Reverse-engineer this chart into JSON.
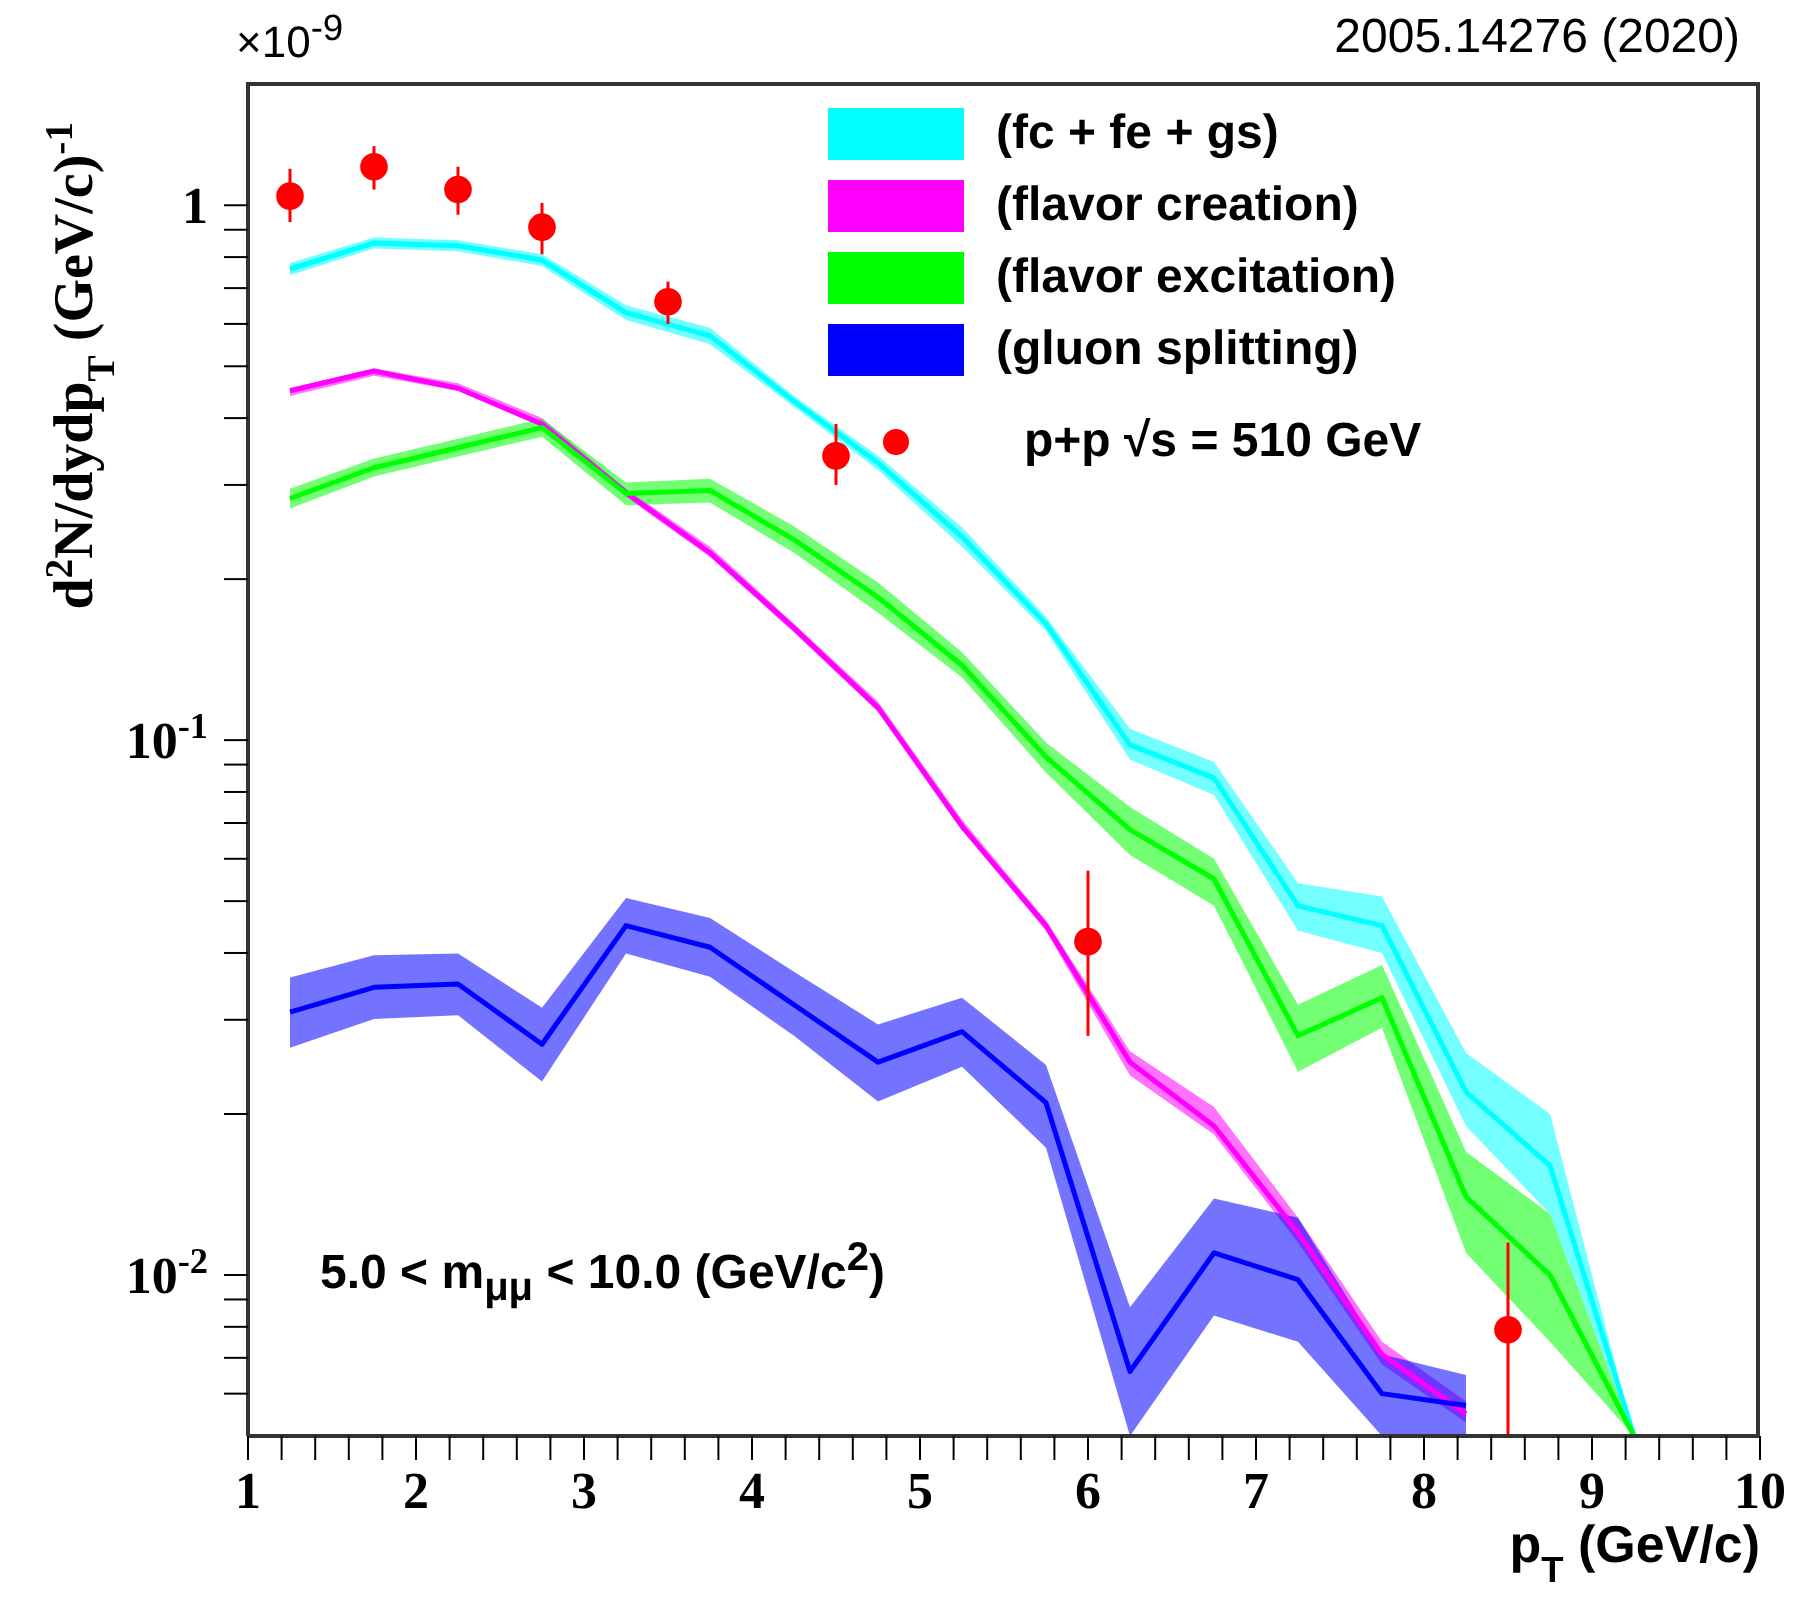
{
  "chart_data": {
    "type": "line",
    "xlabel": "p$_{T}$ (GeV/c)",
    "ylabel": "d$^{2}$N/dydp$_{T}$ (GeV/c)$^{-1}$",
    "x": [
      1.25,
      1.75,
      2.25,
      2.75,
      3.25,
      3.75,
      4.25,
      4.75,
      5.25,
      5.75,
      6.25,
      6.75,
      7.25,
      7.75,
      8.25,
      8.75,
      9.25
    ],
    "xlim": [
      1,
      10
    ],
    "xticks": [
      1,
      {
        "value": 1.2,
        "label": null
      },
      {
        "value": 1.4,
        "label": null
      },
      {
        "value": 1.6,
        "label": null
      },
      {
        "value": 1.8,
        "label": null
      },
      2,
      {
        "value": 2.2,
        "label": null
      },
      {
        "value": 2.4,
        "label": null
      },
      {
        "value": 2.6,
        "label": null
      },
      {
        "value": 2.8,
        "label": null
      },
      3,
      {
        "value": 3.2,
        "label": null
      },
      {
        "value": 3.4,
        "label": null
      },
      {
        "value": 3.6,
        "label": null
      },
      {
        "value": 3.8,
        "label": null
      },
      4,
      {
        "value": 4.2,
        "label": null
      },
      {
        "value": 4.4,
        "label": null
      },
      {
        "value": 4.6,
        "label": null
      },
      {
        "value": 4.8,
        "label": null
      },
      5,
      {
        "value": 5.2,
        "label": null
      },
      {
        "value": 5.4,
        "label": null
      },
      {
        "value": 5.6,
        "label": null
      },
      {
        "value": 5.8,
        "label": null
      },
      6,
      {
        "value": 6.2,
        "label": null
      },
      {
        "value": 6.4,
        "label": null
      },
      {
        "value": 6.6,
        "label": null
      },
      {
        "value": 6.8,
        "label": null
      },
      7,
      {
        "value": 7.2,
        "label": null
      },
      {
        "value": 7.4,
        "label": null
      },
      {
        "value": 7.6,
        "label": null
      },
      {
        "value": 7.8,
        "label": null
      },
      8,
      {
        "value": 8.2,
        "label": null
      },
      {
        "value": 8.4,
        "label": null
      },
      {
        "value": 8.6,
        "label": null
      },
      {
        "value": 8.8,
        "label": null
      },
      9,
      {
        "value": 9.2,
        "label": null
      },
      {
        "value": 9.4,
        "label": null
      },
      {
        "value": 9.6,
        "label": null
      },
      {
        "value": 9.8,
        "label": null
      },
      10
    ],
    "ylim": [
      0.005,
      1.7
    ],
    "yticks": [
      {
        "value": 0.006,
        "label": null
      },
      {
        "value": 0.007,
        "label": null
      },
      {
        "value": 0.008,
        "label": null
      },
      {
        "value": 0.009,
        "label": null
      },
      {
        "value": 0.01,
        "label": "10$^{-2}$"
      },
      {
        "value": 0.02,
        "label": null
      },
      {
        "value": 0.03,
        "label": null
      },
      {
        "value": 0.04,
        "label": null
      },
      {
        "value": 0.05,
        "label": null
      },
      {
        "value": 0.06,
        "label": null
      },
      {
        "value": 0.07,
        "label": null
      },
      {
        "value": 0.08,
        "label": null
      },
      {
        "value": 0.09,
        "label": null
      },
      {
        "value": 0.1,
        "label": "10$^{-1}$"
      },
      {
        "value": 0.2,
        "label": null
      },
      {
        "value": 0.3,
        "label": null
      },
      {
        "value": 0.4,
        "label": null
      },
      {
        "value": 0.5,
        "label": null
      },
      {
        "value": 0.6,
        "label": null
      },
      {
        "value": 0.7,
        "label": null
      },
      {
        "value": 0.8,
        "label": null
      },
      {
        "value": 0.9,
        "label": null
      },
      1
    ],
    "log": "y",
    "legend": "top right",
    "annotations": [
      "×10$^{-9}$",
      "2005.14276 (2020)",
      "5.0 < m$_{μμ}$ < 10.0 (GeV/c$^{2}$)"
    ],
    "series": [
      {
        "name": "(fc + fe + gs)",
        "color": "#00ffff",
        "values": [
          0.76,
          0.85,
          0.84,
          0.79,
          0.63,
          0.57,
          0.43,
          0.33,
          0.24,
          0.165,
          0.098,
          0.085,
          0.049,
          0.045,
          0.022,
          0.016,
          0.005
        ],
        "lower": [
          0.74,
          0.83,
          0.82,
          0.77,
          0.61,
          0.55,
          0.42,
          0.32,
          0.23,
          0.16,
          0.092,
          0.079,
          0.044,
          0.04,
          0.019,
          0.013,
          0.005
        ],
        "upper": [
          0.78,
          0.87,
          0.86,
          0.81,
          0.65,
          0.59,
          0.44,
          0.34,
          0.25,
          0.17,
          0.105,
          0.091,
          0.054,
          0.051,
          0.026,
          0.02,
          0.005
        ]
      },
      {
        "name": "(flavor creation)",
        "color": "#ff00ff",
        "values": [
          0.45,
          0.49,
          0.455,
          0.39,
          0.29,
          0.224,
          0.162,
          0.115,
          0.069,
          0.045,
          0.025,
          0.019,
          0.012,
          0.0071,
          0.0055,
          null,
          null
        ],
        "lower": [
          0.44,
          0.48,
          0.45,
          0.385,
          0.285,
          0.22,
          0.159,
          0.113,
          0.068,
          0.044,
          0.0236,
          0.0183,
          0.0115,
          0.0068,
          0.0053,
          null,
          null
        ],
        "upper": [
          0.455,
          0.495,
          0.465,
          0.4,
          0.295,
          0.23,
          0.165,
          0.118,
          0.071,
          0.046,
          0.0262,
          0.0206,
          0.0128,
          0.0075,
          0.0058,
          null,
          null
        ]
      },
      {
        "name": "(flavor excitation)",
        "color": "#00ff00",
        "values": [
          0.283,
          0.323,
          0.352,
          0.384,
          0.289,
          0.293,
          0.237,
          0.185,
          0.138,
          0.093,
          0.068,
          0.055,
          0.028,
          0.033,
          0.014,
          0.01,
          0.005
        ],
        "lower": [
          0.271,
          0.311,
          0.339,
          0.369,
          0.275,
          0.278,
          0.224,
          0.173,
          0.131,
          0.087,
          0.061,
          0.049,
          0.024,
          0.029,
          0.011,
          0.0075,
          0.005
        ],
        "upper": [
          0.295,
          0.336,
          0.366,
          0.399,
          0.303,
          0.308,
          0.251,
          0.197,
          0.146,
          0.099,
          0.075,
          0.06,
          0.032,
          0.038,
          0.017,
          0.013,
          0.005
        ]
      },
      {
        "name": "(gluon splitting)",
        "color": "#0000ff",
        "values": [
          0.031,
          0.0345,
          0.035,
          0.027,
          0.045,
          0.041,
          0.032,
          0.025,
          0.0285,
          0.021,
          0.0066,
          0.011,
          0.0098,
          0.006,
          0.0057,
          null,
          null
        ],
        "lower": [
          0.0266,
          0.0301,
          0.0306,
          0.023,
          0.0399,
          0.0361,
          0.028,
          0.0211,
          0.0245,
          0.0173,
          0.005,
          0.0084,
          0.0075,
          0.005,
          0.005,
          null,
          null
        ],
        "upper": [
          0.036,
          0.0396,
          0.0399,
          0.0316,
          0.0507,
          0.0465,
          0.0369,
          0.0294,
          0.033,
          0.0247,
          0.0087,
          0.0139,
          0.0128,
          0.0071,
          0.0065,
          null,
          null
        ]
      },
      {
        "name": "p+p  √s = 510 GeV",
        "type": "scatter",
        "color": "#ff0000",
        "marker": "circle",
        "x": [
          1.25,
          1.75,
          2.25,
          2.75,
          3.5,
          4.5,
          6,
          8.5
        ],
        "values": [
          1.04,
          1.18,
          1.07,
          0.91,
          0.66,
          0.34,
          0.042,
          0.0079
        ],
        "errors": [
          [
            0.93,
            1.17
          ],
          [
            1.07,
            1.29
          ],
          [
            0.96,
            1.18
          ],
          [
            0.81,
            1.01
          ],
          [
            0.6,
            0.72
          ],
          [
            0.3,
            0.39
          ],
          [
            0.028,
            0.057
          ],
          [
            0.005,
            0.0115
          ]
        ]
      }
    ]
  }
}
